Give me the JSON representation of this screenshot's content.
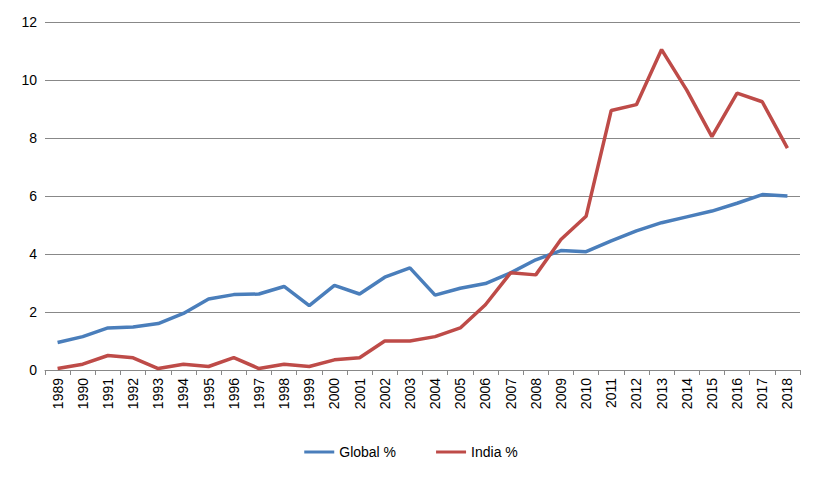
{
  "chart_data": {
    "type": "line",
    "categories": [
      "1989",
      "1990",
      "1991",
      "1992",
      "1993",
      "1994",
      "1995",
      "1996",
      "1997",
      "1998",
      "1999",
      "2000",
      "2001",
      "2002",
      "2003",
      "2004",
      "2005",
      "2006",
      "2007",
      "2008",
      "2009",
      "2010",
      "2011",
      "2012",
      "2013",
      "2014",
      "2015",
      "2016",
      "2017",
      "2018"
    ],
    "series": [
      {
        "name": "Global %",
        "color": "#4a7ebb",
        "values": [
          0.95,
          1.15,
          1.45,
          1.48,
          1.6,
          1.95,
          2.45,
          2.6,
          2.62,
          2.88,
          2.22,
          2.92,
          2.62,
          3.2,
          3.52,
          2.58,
          2.82,
          2.98,
          3.35,
          3.8,
          4.12,
          4.08,
          4.45,
          4.8,
          5.08,
          5.28,
          5.48,
          5.75,
          6.05,
          6.0
        ]
      },
      {
        "name": "India %",
        "color": "#be4b48",
        "values": [
          0.05,
          0.2,
          0.5,
          0.42,
          0.05,
          0.2,
          0.12,
          0.43,
          0.05,
          0.2,
          0.12,
          0.35,
          0.42,
          1.0,
          1.0,
          1.15,
          1.45,
          2.25,
          3.35,
          3.28,
          4.5,
          5.3,
          8.95,
          9.15,
          11.05,
          9.65,
          8.05,
          9.55,
          9.25,
          7.65
        ]
      }
    ],
    "ylim": [
      0,
      12
    ],
    "yticks": [
      0,
      2,
      4,
      6,
      8,
      10,
      12
    ],
    "grid": true,
    "legend": "bottom"
  }
}
